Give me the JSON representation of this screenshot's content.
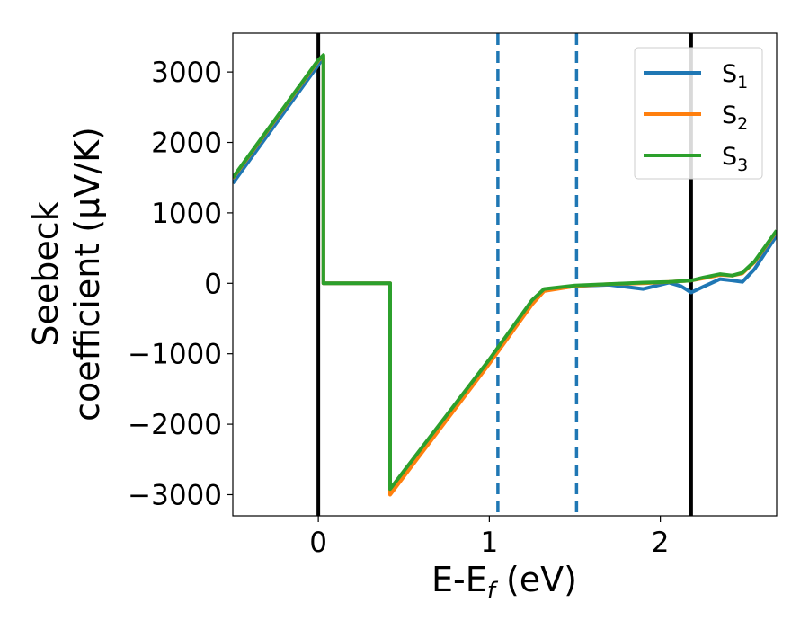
{
  "chart_data": {
    "type": "line",
    "xlabel": "E-E",
    "xlabel_sub": "f",
    "xlabel_unit": " (eV)",
    "ylabel_line1": "Seebeck",
    "ylabel_line2": "coefficient  (μV/K)",
    "xlim": [
      -0.5,
      2.68
    ],
    "ylim": [
      -3300,
      3550
    ],
    "xticks": [
      0,
      1,
      2
    ],
    "xtick_labels": [
      "0",
      "1",
      "2"
    ],
    "yticks": [
      3000,
      2000,
      1000,
      0,
      -1000,
      -2000,
      -3000
    ],
    "ytick_labels": [
      "3000",
      "2000",
      "1000",
      "0",
      "−1000",
      "−2000",
      "−3000"
    ],
    "grid": false,
    "legend_position": "top-right",
    "vlines": [
      {
        "x": 0,
        "style": "solid",
        "color": "#000000"
      },
      {
        "x": 2.18,
        "style": "solid",
        "color": "#000000"
      },
      {
        "x": 1.05,
        "style": "dashed",
        "color": "#1f77b4"
      },
      {
        "x": 1.51,
        "style": "dashed",
        "color": "#1f77b4"
      }
    ],
    "series": [
      {
        "name": "S",
        "name_sub": "1",
        "color": "#1f77b4",
        "x": [
          -0.5,
          0.0,
          0.03,
          0.03,
          0.42,
          0.42,
          1.0,
          1.25,
          1.32,
          1.5,
          1.7,
          1.9,
          2.05,
          2.12,
          2.18,
          2.25,
          2.35,
          2.42,
          2.48,
          2.55,
          2.68
        ],
        "y": [
          1420,
          3100,
          3200,
          0,
          0,
          -2970,
          -1120,
          -280,
          -100,
          -40,
          -20,
          -80,
          10,
          -40,
          -130,
          -50,
          60,
          40,
          20,
          200,
          680
        ]
      },
      {
        "name": "S",
        "name_sub": "2",
        "color": "#ff7f0e",
        "x": [
          -0.5,
          0.0,
          0.03,
          0.03,
          0.42,
          0.42,
          1.0,
          1.25,
          1.32,
          1.5,
          1.7,
          1.9,
          2.05,
          2.12,
          2.18,
          2.25,
          2.35,
          2.42,
          2.48,
          2.55,
          2.68
        ],
        "y": [
          1490,
          3160,
          3230,
          0,
          0,
          -3000,
          -1140,
          -300,
          -110,
          -40,
          -10,
          0,
          20,
          30,
          40,
          70,
          120,
          110,
          140,
          300,
          740
        ]
      },
      {
        "name": "S",
        "name_sub": "3",
        "color": "#2ca02c",
        "x": [
          -0.5,
          0.0,
          0.03,
          0.03,
          0.42,
          0.42,
          1.0,
          1.25,
          1.32,
          1.5,
          1.7,
          1.9,
          2.05,
          2.12,
          2.18,
          2.25,
          2.35,
          2.42,
          2.48,
          2.55,
          2.68
        ],
        "y": [
          1500,
          3170,
          3240,
          0,
          0,
          -2920,
          -1080,
          -240,
          -80,
          -30,
          -10,
          10,
          20,
          30,
          40,
          80,
          130,
          110,
          150,
          310,
          750
        ]
      }
    ]
  }
}
